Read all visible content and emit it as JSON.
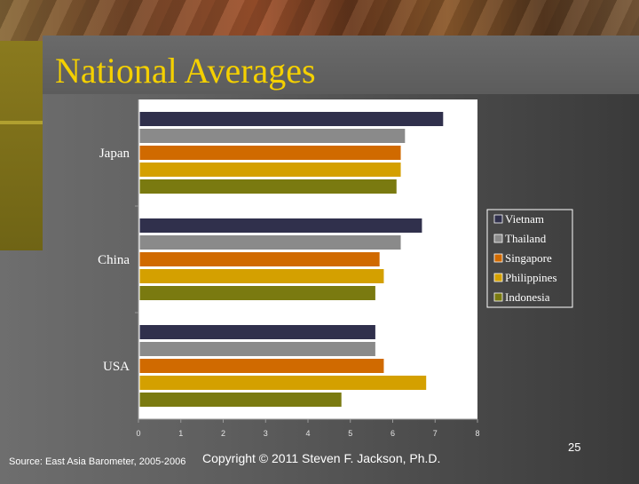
{
  "slide": {
    "title": "National Averages",
    "source": "Source: East Asia Barometer, 2005-2006",
    "copyright": "Copyright © 2011 Steven F. Jackson, Ph.D.",
    "page_number": "25"
  },
  "colors": {
    "Vietnam": "#30304c",
    "Thailand": "#8a8a8a",
    "Singapore": "#d06a00",
    "Philippines": "#d4a000",
    "Indonesia": "#7a7a10"
  },
  "chart_data": {
    "type": "bar",
    "orientation": "horizontal",
    "categories": [
      "Japan",
      "China",
      "USA"
    ],
    "series": [
      {
        "name": "Vietnam",
        "values": [
          7.2,
          6.7,
          5.6
        ]
      },
      {
        "name": "Thailand",
        "values": [
          6.3,
          6.2,
          5.6
        ]
      },
      {
        "name": "Singapore",
        "values": [
          6.2,
          5.7,
          5.8
        ]
      },
      {
        "name": "Philippines",
        "values": [
          6.2,
          5.8,
          6.8
        ]
      },
      {
        "name": "Indonesia",
        "values": [
          6.1,
          5.6,
          4.8
        ]
      }
    ],
    "xlim": [
      0,
      8
    ],
    "xticks": [
      "0",
      "1",
      "2",
      "3",
      "4",
      "5",
      "6",
      "7",
      "8"
    ],
    "xlabel": "",
    "ylabel": "",
    "legend_position": "right",
    "grid": false
  }
}
